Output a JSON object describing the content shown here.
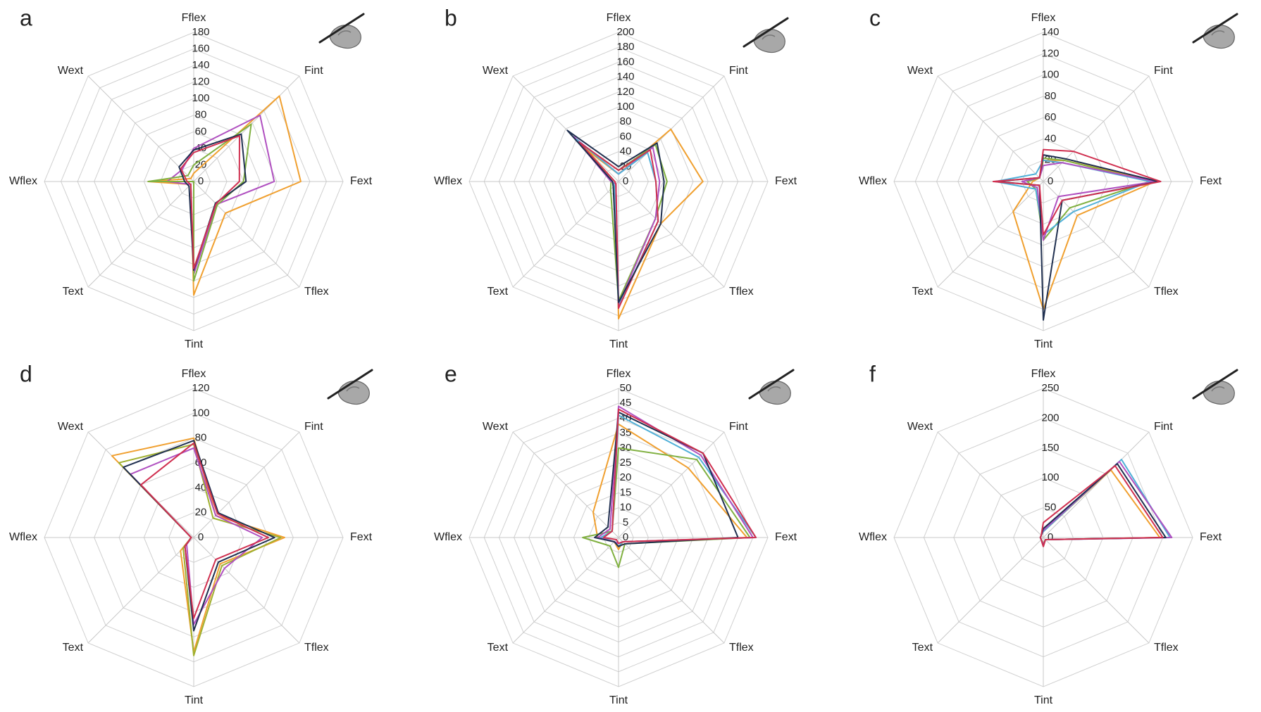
{
  "chart_data": [
    {
      "type": "radar",
      "title": "a",
      "categories": [
        "Fflex",
        "Fint",
        "Fext",
        "Tflex",
        "Tint",
        "Text",
        "Wflex",
        "Wext"
      ],
      "ylim": [
        0,
        180
      ],
      "yticks": [
        0,
        20,
        40,
        60,
        80,
        100,
        120,
        140,
        160,
        180
      ],
      "grid": true,
      "series": [
        {
          "color": "#f0a030",
          "values": [
            10,
            146,
            129,
            54,
            137,
            5,
            55,
            5
          ]
        },
        {
          "color": "#b050c0",
          "values": [
            40,
            113,
            97,
            39,
            112,
            5,
            32,
            20
          ]
        },
        {
          "color": "#80b040",
          "values": [
            20,
            98,
            60,
            40,
            120,
            0,
            55,
            10
          ]
        },
        {
          "color": "#203050",
          "values": [
            38,
            81,
            63,
            37,
            107,
            8,
            11,
            25
          ]
        },
        {
          "color": "#d03050",
          "values": [
            35,
            78,
            55,
            38,
            105,
            5,
            8,
            22
          ]
        }
      ]
    },
    {
      "type": "radar",
      "title": "b",
      "categories": [
        "Fflex",
        "Fint",
        "Fext",
        "Tflex",
        "Tint",
        "Text",
        "Wflex",
        "Wext"
      ],
      "ylim": [
        0,
        200
      ],
      "yticks": [
        0,
        20,
        40,
        60,
        80,
        100,
        120,
        140,
        160,
        180,
        200
      ],
      "grid": true,
      "series": [
        {
          "color": "#f0a030",
          "values": [
            10,
            99,
            113,
            80,
            184,
            5,
            5,
            60
          ]
        },
        {
          "color": "#80b040",
          "values": [
            15,
            70,
            65,
            70,
            160,
            15,
            10,
            70
          ]
        },
        {
          "color": "#b050c0",
          "values": [
            10,
            65,
            55,
            70,
            165,
            5,
            10,
            85
          ]
        },
        {
          "color": "#50b0d8",
          "values": [
            10,
            55,
            50,
            75,
            168,
            8,
            8,
            80
          ]
        },
        {
          "color": "#d03050",
          "values": [
            15,
            60,
            50,
            75,
            170,
            5,
            5,
            75
          ]
        },
        {
          "color": "#203050",
          "values": [
            20,
            73,
            61,
            80,
            162,
            10,
            8,
            97
          ]
        }
      ]
    },
    {
      "type": "radar",
      "title": "c",
      "categories": [
        "Fflex",
        "Fint",
        "Fext",
        "Tflex",
        "Tint",
        "Text",
        "Wflex",
        "Wext"
      ],
      "ylim": [
        0,
        140
      ],
      "yticks": [
        0,
        20,
        40,
        60,
        80,
        100,
        120,
        140
      ],
      "grid": true,
      "series": [
        {
          "color": "#f0a030",
          "values": [
            20,
            28,
            105,
            45,
            120,
            40,
            10,
            5
          ]
        },
        {
          "color": "#80b040",
          "values": [
            22,
            28,
            100,
            35,
            55,
            10,
            15,
            5
          ]
        },
        {
          "color": "#50b0d8",
          "values": [
            20,
            25,
            100,
            40,
            50,
            10,
            45,
            10
          ]
        },
        {
          "color": "#b050c0",
          "values": [
            15,
            25,
            105,
            20,
            55,
            8,
            20,
            5
          ]
        },
        {
          "color": "#203050",
          "values": [
            25,
            30,
            108,
            25,
            130,
            5,
            45,
            5
          ]
        },
        {
          "color": "#d03050",
          "values": [
            30,
            40,
            110,
            25,
            50,
            5,
            47,
            5
          ]
        }
      ]
    },
    {
      "type": "radar",
      "title": "d",
      "categories": [
        "Fflex",
        "Fint",
        "Fext",
        "Tflex",
        "Tint",
        "Text",
        "Wflex",
        "Wext"
      ],
      "ylim": [
        0,
        120
      ],
      "yticks": [
        0,
        20,
        40,
        60,
        80,
        100,
        120
      ],
      "grid": true,
      "series": [
        {
          "color": "#f0a030",
          "values": [
            80,
            25,
            73,
            30,
            92,
            15,
            2,
            93
          ]
        },
        {
          "color": "#a0b030",
          "values": [
            75,
            22,
            70,
            32,
            95,
            12,
            2,
            85
          ]
        },
        {
          "color": "#b050c0",
          "values": [
            72,
            25,
            55,
            35,
            70,
            8,
            2,
            72
          ]
        },
        {
          "color": "#203050",
          "values": [
            78,
            28,
            65,
            28,
            75,
            10,
            2,
            80
          ]
        },
        {
          "color": "#d03050",
          "values": [
            76,
            27,
            60,
            25,
            65,
            10,
            2,
            60
          ]
        }
      ]
    },
    {
      "type": "radar",
      "title": "e",
      "categories": [
        "Fflex",
        "Fint",
        "Fext",
        "Tflex",
        "Tint",
        "Text",
        "Wflex",
        "Wext"
      ],
      "ylim": [
        0,
        50
      ],
      "yticks": [
        0,
        5,
        10,
        15,
        20,
        25,
        30,
        35,
        40,
        45,
        50
      ],
      "grid": true,
      "series": [
        {
          "color": "#f0a030",
          "values": [
            38,
            33,
            43,
            2,
            4,
            2,
            7,
            12
          ]
        },
        {
          "color": "#80b040",
          "values": [
            30,
            37,
            44,
            3,
            10,
            4,
            12,
            3
          ]
        },
        {
          "color": "#50b0d8",
          "values": [
            41,
            38,
            46,
            2,
            3,
            2,
            6,
            3
          ]
        },
        {
          "color": "#b050c0",
          "values": [
            44,
            39,
            45,
            2,
            2,
            2,
            7,
            4
          ]
        },
        {
          "color": "#203050",
          "values": [
            42,
            40,
            40,
            3,
            3,
            2,
            8,
            5
          ]
        },
        {
          "color": "#d03050",
          "values": [
            43,
            40,
            46,
            2,
            2,
            1,
            5,
            3
          ]
        }
      ]
    },
    {
      "type": "radar",
      "title": "f",
      "categories": [
        "Fflex",
        "Fint",
        "Fext",
        "Tflex",
        "Tint",
        "Text",
        "Wflex",
        "Wext"
      ],
      "ylim": [
        0,
        250
      ],
      "yticks": [
        0,
        50,
        100,
        150,
        200,
        250
      ],
      "grid": true,
      "series": [
        {
          "color": "#f0a030",
          "values": [
            10,
            160,
            195,
            5,
            10,
            5,
            5,
            5
          ]
        },
        {
          "color": "#50b0d8",
          "values": [
            10,
            185,
            212,
            5,
            12,
            5,
            5,
            5
          ]
        },
        {
          "color": "#b050c0",
          "values": [
            12,
            180,
            215,
            5,
            12,
            5,
            5,
            5
          ]
        },
        {
          "color": "#203050",
          "values": [
            15,
            175,
            205,
            5,
            15,
            5,
            5,
            5
          ]
        },
        {
          "color": "#d03050",
          "values": [
            25,
            170,
            200,
            5,
            15,
            5,
            5,
            5
          ]
        }
      ]
    }
  ]
}
